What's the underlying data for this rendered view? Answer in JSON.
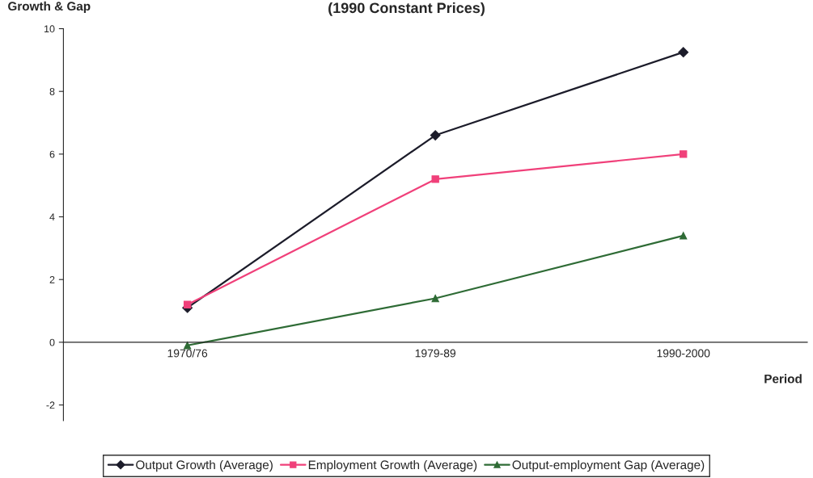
{
  "chart_data": {
    "type": "line",
    "title": "(1990 Constant Prices)",
    "xlabel": "Period",
    "ylabel": "Growth & Gap",
    "categories": [
      "1970/76",
      "1979-89",
      "1990-2000"
    ],
    "series": [
      {
        "name": "Output Growth (Average)",
        "color": "#1c1c2a",
        "marker": "diamond",
        "values": [
          1.1,
          6.6,
          9.25
        ]
      },
      {
        "name": "Employment Growth (Average)",
        "color": "#f0407a",
        "marker": "square",
        "values": [
          1.2,
          5.2,
          6.0
        ]
      },
      {
        "name": "Output-employment Gap (Average)",
        "color": "#2e6b35",
        "marker": "triangle",
        "values": [
          -0.1,
          1.4,
          3.4
        ]
      }
    ],
    "ylim": [
      -2.5,
      10
    ],
    "yticks": [
      -2,
      0,
      2,
      4,
      6,
      8,
      10
    ],
    "grid": false,
    "legend": "bottom"
  }
}
